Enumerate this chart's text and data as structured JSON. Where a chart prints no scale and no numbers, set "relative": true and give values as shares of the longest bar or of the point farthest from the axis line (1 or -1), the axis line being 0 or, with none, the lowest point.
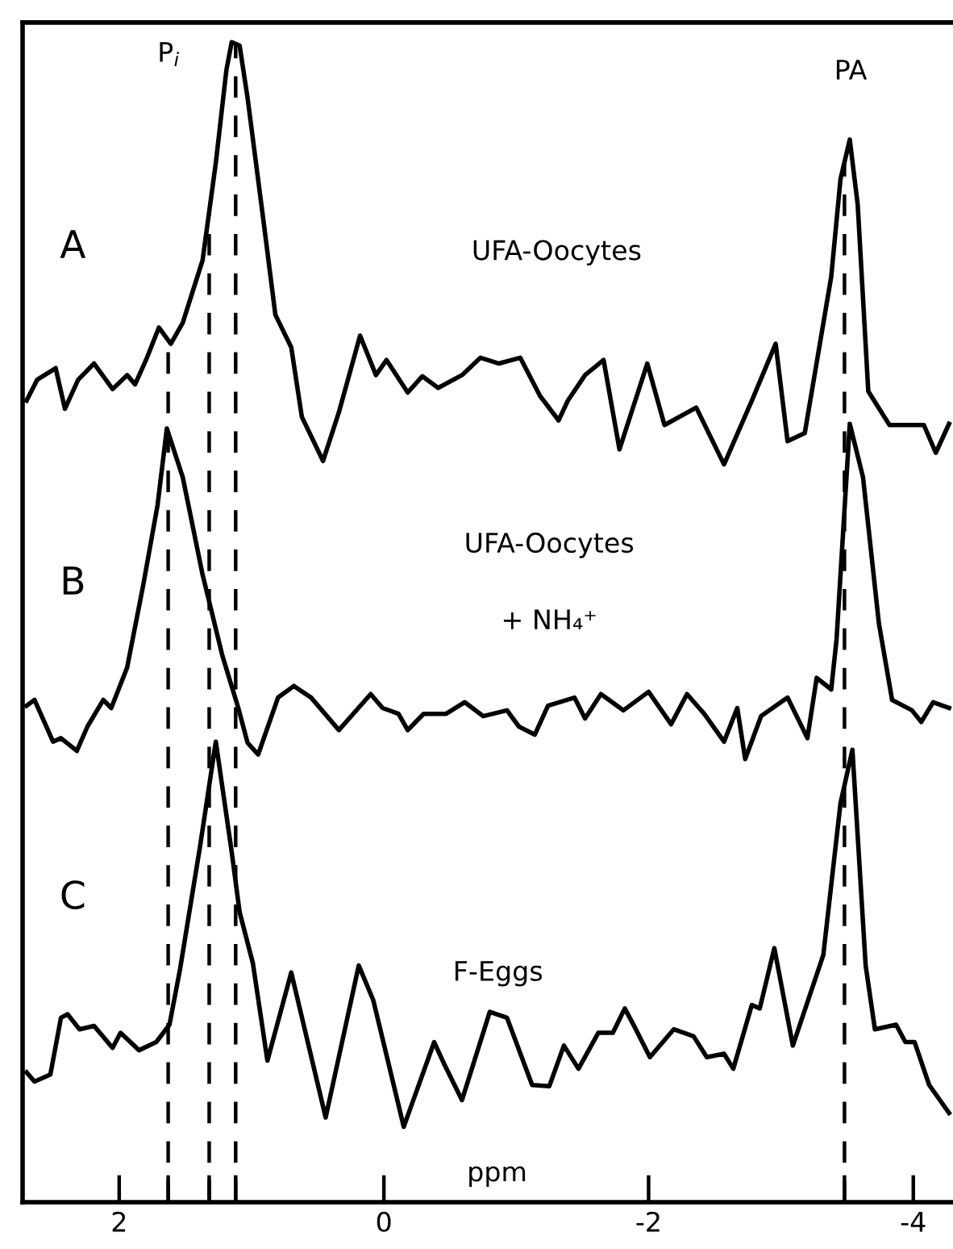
{
  "chart_data": {
    "type": "line",
    "relative": true,
    "xlabel": "ppm",
    "xlim": [
      2.73,
      -4.3
    ],
    "xticks": [
      2,
      {
        "value": 1.63,
        "label": null
      },
      {
        "value": 1.32,
        "label": null
      },
      {
        "value": 1.12,
        "label": null
      },
      0,
      -2,
      {
        "value": -3.48,
        "label": null
      },
      -4
    ],
    "grid": false,
    "legend": false,
    "marker": "none",
    "line_style": "solid",
    "ref_lines": [
      {
        "axis": "x",
        "value": 1.63,
        "line_style": "dashed",
        "color": "#000000"
      },
      {
        "axis": "x",
        "value": 1.32,
        "line_style": "dashed",
        "color": "#000000"
      },
      {
        "axis": "x",
        "value": 1.12,
        "line_style": "dashed",
        "color": "#000000"
      },
      {
        "axis": "x",
        "value": -3.48,
        "line_style": "dashed",
        "color": "#000000"
      }
    ],
    "annotations": [
      "P$_{i}$",
      "PA",
      "UFA-Oocytes",
      "UFA-Oocytes",
      "+ NH₄⁺",
      "F-Eggs"
    ],
    "series": [
      {
        "name": "A",
        "color": "#000000",
        "x": [
          2.7,
          2.62,
          2.48,
          2.41,
          2.31,
          2.19,
          2.05,
          1.94,
          1.88,
          1.79,
          1.7,
          1.61,
          1.52,
          1.37,
          1.27,
          1.19,
          1.15,
          1.09,
          1.03,
          0.91,
          0.82,
          0.7,
          0.62,
          0.46,
          0.34,
          0.18,
          0.06,
          -0.02,
          -0.18,
          -0.29,
          -0.41,
          -0.59,
          -0.73,
          -0.87,
          -1.03,
          -1.18,
          -1.32,
          -1.39,
          -1.52,
          -1.66,
          -1.78,
          -1.99,
          -2.12,
          -2.36,
          -2.57,
          -2.78,
          -2.96,
          -3.05,
          -3.18,
          -3.38,
          -3.45,
          -3.52,
          -3.58,
          -3.66,
          -3.82,
          -4.08,
          -4.17,
          -4.27
        ],
        "values": [
          0.691,
          0.709,
          0.719,
          0.684,
          0.709,
          0.723,
          0.701,
          0.713,
          0.705,
          0.728,
          0.754,
          0.74,
          0.758,
          0.812,
          0.896,
          0.976,
          1.0,
          0.997,
          0.952,
          0.846,
          0.765,
          0.737,
          0.677,
          0.639,
          0.681,
          0.747,
          0.713,
          0.726,
          0.698,
          0.712,
          0.702,
          0.713,
          0.728,
          0.723,
          0.728,
          0.695,
          0.674,
          0.691,
          0.713,
          0.726,
          0.649,
          0.723,
          0.67,
          0.685,
          0.636,
          0.691,
          0.74,
          0.656,
          0.663,
          0.798,
          0.882,
          0.916,
          0.86,
          0.699,
          0.67,
          0.67,
          0.646,
          0.671
        ]
      },
      {
        "name": "B",
        "color": "#000000",
        "x": [
          2.7,
          2.64,
          2.5,
          2.44,
          2.32,
          2.24,
          2.12,
          2.06,
          1.94,
          1.82,
          1.71,
          1.64,
          1.52,
          1.37,
          1.22,
          1.1,
          1.03,
          0.95,
          0.8,
          0.68,
          0.55,
          0.34,
          0.1,
          0.01,
          -0.11,
          -0.18,
          -0.3,
          -0.47,
          -0.61,
          -0.75,
          -0.93,
          -1.02,
          -1.14,
          -1.24,
          -1.44,
          -1.52,
          -1.64,
          -1.81,
          -2.0,
          -2.17,
          -2.29,
          -2.42,
          -2.57,
          -2.67,
          -2.73,
          -2.85,
          -3.05,
          -3.2,
          -3.27,
          -3.38,
          -3.42,
          -3.52,
          -3.62,
          -3.74,
          -3.84,
          -3.99,
          -4.06,
          -4.15,
          -4.27
        ],
        "values": [
          0.428,
          0.433,
          0.397,
          0.4,
          0.389,
          0.41,
          0.433,
          0.426,
          0.461,
          0.531,
          0.601,
          0.667,
          0.625,
          0.541,
          0.471,
          0.426,
          0.396,
          0.386,
          0.435,
          0.445,
          0.435,
          0.407,
          0.438,
          0.426,
          0.421,
          0.407,
          0.421,
          0.421,
          0.431,
          0.419,
          0.424,
          0.41,
          0.403,
          0.428,
          0.435,
          0.417,
          0.438,
          0.424,
          0.44,
          0.412,
          0.438,
          0.421,
          0.397,
          0.426,
          0.382,
          0.419,
          0.435,
          0.4,
          0.452,
          0.442,
          0.485,
          0.671,
          0.625,
          0.499,
          0.433,
          0.424,
          0.414,
          0.431,
          0.426
        ]
      },
      {
        "name": "C",
        "color": "#000000",
        "x": [
          2.7,
          2.64,
          2.52,
          2.44,
          2.39,
          2.3,
          2.19,
          2.05,
          1.99,
          1.85,
          1.72,
          1.62,
          1.54,
          1.39,
          1.27,
          1.15,
          1.09,
          0.99,
          0.88,
          0.7,
          0.44,
          0.19,
          0.08,
          -0.15,
          -0.38,
          -0.46,
          -0.59,
          -0.8,
          -0.93,
          -1.12,
          -1.25,
          -1.36,
          -1.47,
          -1.62,
          -1.73,
          -1.82,
          -1.89,
          -2.01,
          -2.19,
          -2.34,
          -2.44,
          -2.57,
          -2.64,
          -2.78,
          -2.84,
          -2.95,
          -3.09,
          -3.32,
          -3.45,
          -3.54,
          -3.64,
          -3.71,
          -3.87,
          -3.94,
          -4.01,
          -4.12,
          -4.27
        ],
        "values": [
          0.112,
          0.104,
          0.11,
          0.159,
          0.162,
          0.149,
          0.152,
          0.133,
          0.146,
          0.131,
          0.138,
          0.153,
          0.201,
          0.306,
          0.397,
          0.302,
          0.25,
          0.206,
          0.122,
          0.198,
          0.073,
          0.204,
          0.174,
          0.065,
          0.138,
          0.118,
          0.088,
          0.164,
          0.159,
          0.101,
          0.1,
          0.135,
          0.115,
          0.146,
          0.146,
          0.167,
          0.152,
          0.125,
          0.149,
          0.143,
          0.125,
          0.128,
          0.115,
          0.17,
          0.167,
          0.219,
          0.135,
          0.213,
          0.344,
          0.39,
          0.204,
          0.149,
          0.153,
          0.138,
          0.138,
          0.101,
          0.077
        ]
      }
    ]
  }
}
